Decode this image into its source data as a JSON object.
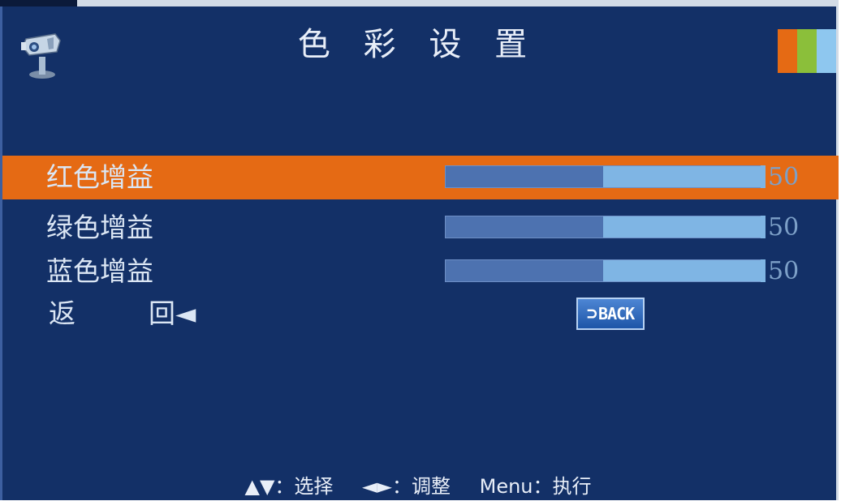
{
  "title": "色 彩 设 置",
  "logo_icon": "projector-stand-icon",
  "color_swatches": [
    "#e56a14",
    "#8bbf3a",
    "#8ec7ef"
  ],
  "rows": [
    {
      "label": "红色增益",
      "value": "50",
      "level_percent": 50,
      "selected": true
    },
    {
      "label": "绿色增益",
      "value": "50",
      "level_percent": 50,
      "selected": false
    },
    {
      "label": "蓝色增益",
      "value": "50",
      "level_percent": 50,
      "selected": false
    }
  ],
  "return_row": {
    "label_part1": "返",
    "label_part2": "回◄",
    "back_button": "BACK",
    "back_icon": "return-arrow-icon"
  },
  "hint": {
    "select_keys": "▲▼",
    "select_text": "：选择",
    "adjust_keys": "◄►",
    "adjust_text": "：调整",
    "menu_key": "Menu",
    "menu_text": "：执行"
  },
  "colors": {
    "background": "#133067",
    "selected_row": "#e56a14",
    "bar_dark": "#4d72b0",
    "bar_light": "#7fb5e4"
  }
}
